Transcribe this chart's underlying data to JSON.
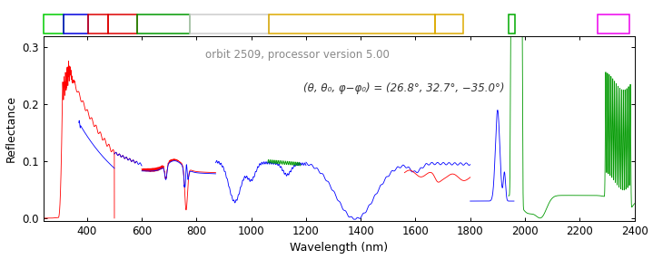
{
  "title_text": "orbit 2509, processor version 5.00",
  "annotation_part1": "(θ, θ₀, φ−φ₀)",
  "annotation_part2": " = (26.8°, 32.7°, −35.0°)",
  "xlabel": "Wavelength (nm)",
  "ylabel": "Reflectance",
  "xlim": [
    240,
    2400
  ],
  "ylim": [
    -0.005,
    0.32
  ],
  "yticks": [
    0.0,
    0.1,
    0.2,
    0.3
  ],
  "xticks": [
    400,
    600,
    800,
    1000,
    1200,
    1400,
    1600,
    1800,
    2000,
    2200,
    2400
  ],
  "background": "#ffffff",
  "channels": [
    {
      "xmin": 240,
      "xmax": 314,
      "color": "#00cc00"
    },
    {
      "xmin": 314,
      "xmax": 405,
      "color": "#0000dd"
    },
    {
      "xmin": 405,
      "xmax": 477,
      "color": "#dd0000"
    },
    {
      "xmin": 477,
      "xmax": 582,
      "color": "#dd0000"
    },
    {
      "xmin": 582,
      "xmax": 775,
      "color": "#009900"
    },
    {
      "xmin": 775,
      "xmax": 1063,
      "color": "#cccccc"
    },
    {
      "xmin": 1063,
      "xmax": 1670,
      "color": "#ddaa00"
    },
    {
      "xmin": 1670,
      "xmax": 1773,
      "color": "#ddaa00"
    },
    {
      "xmin": 1940,
      "xmax": 1962,
      "color": "#00aa00"
    },
    {
      "xmin": 2265,
      "xmax": 2380,
      "color": "#ee00ee"
    }
  ],
  "plot_color_red": "#ff0000",
  "plot_color_blue": "#0000ff",
  "plot_color_green": "#009900",
  "lw": 0.6
}
